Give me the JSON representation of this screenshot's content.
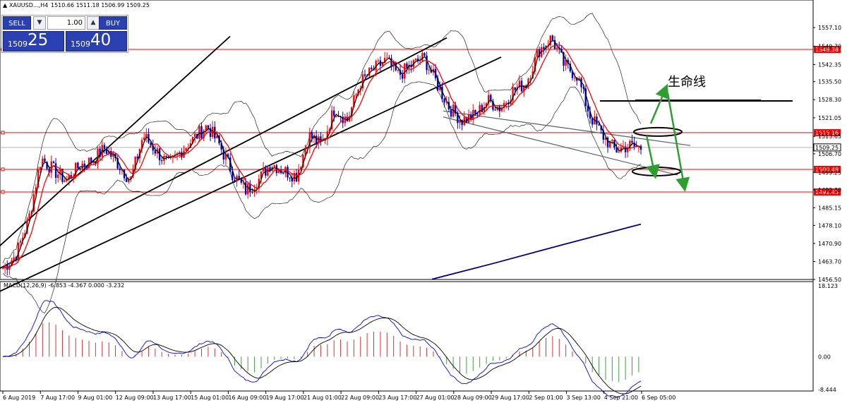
{
  "header": {
    "symbol": "XAUUSD...,H4",
    "ohlc": "1510.66 1511.18 1506.99 1509.25"
  },
  "trade_panel": {
    "sell_label": "SELL",
    "buy_label": "BUY",
    "lot": "1.00",
    "sell_small": "1509",
    "sell_big": "25",
    "buy_small": "1509",
    "buy_big": "40",
    "spin_down": "▼",
    "spin_up": "▲"
  },
  "annotation_text": "生命线",
  "colors": {
    "bull": "#ff0000",
    "bear": "#0000c8",
    "level": "#ff0000",
    "channel": "#000000",
    "bollinger": "#000000",
    "ma_fast": "#000000",
    "ma_slow": "#ff0000",
    "ma_long": "#000080",
    "arrows": "#2e9e2e",
    "macd_line": "#0000ff",
    "signal_line": "#000000"
  },
  "chart_data": [
    {
      "type": "candlestick",
      "ylim": [
        1456.5,
        1560.5
      ],
      "price_ticks": [
        "1557.10",
        "1549.70",
        "1542.35",
        "1535.50",
        "1528.30",
        "1521.05",
        "1513.65",
        "1506.70",
        "1499.25",
        "1492.30",
        "1485.15",
        "1478.10",
        "1470.90",
        "1463.70",
        "1456.50"
      ],
      "levels": [
        {
          "value": 1548.38,
          "label": "1548.38"
        },
        {
          "value": 1515.16,
          "label": "1515.16"
        },
        {
          "value": 1500.48,
          "label": "1500.48"
        },
        {
          "value": 1491.45,
          "label": "1491.45"
        }
      ],
      "current_price": {
        "value": 1509.25,
        "label": "1509.25"
      },
      "time_labels": [
        "6 Aug 2019",
        "7 Aug 17:00",
        "9 Aug 01:00",
        "12 Aug 09:00",
        "13 Aug 17:00",
        "15 Aug 01:00",
        "16 Aug 09:00",
        "19 Aug 17:00",
        "21 Aug 01:00",
        "22 Aug 09:00",
        "23 Aug 17:00",
        "27 Aug 01:00",
        "28 Aug 09:00",
        "29 Aug 17:00",
        "2 Sep 01:00",
        "3 Sep 13:00",
        "4 Sep 21:00",
        "6 Sep 05:00"
      ],
      "close_path": [
        1461,
        1466,
        1480,
        1505,
        1500,
        1496,
        1502,
        1504,
        1509,
        1503,
        1496,
        1514,
        1508,
        1502,
        1508,
        1513,
        1518,
        1510,
        1499,
        1492,
        1496,
        1503,
        1500,
        1498,
        1514,
        1510,
        1525,
        1520,
        1535,
        1540,
        1544,
        1538,
        1542,
        1545,
        1535,
        1525,
        1520,
        1522,
        1528,
        1525,
        1532,
        1535,
        1548,
        1553,
        1542,
        1538,
        1522,
        1514,
        1508,
        1510,
        1509
      ],
      "trendline_ends": [
        {
          "from": [
            0,
            1470.0
          ],
          "to": [
            326,
            1553.6
          ]
        },
        {
          "from": [
            0,
            1461.0
          ],
          "to": [
            633,
            1553.0
          ]
        },
        {
          "from": [
            0,
            1451.8
          ],
          "to": [
            710,
            1545.3
          ]
        },
        {
          "from": [
            628,
            1523.8
          ],
          "to": [
            978,
            1510.0
          ]
        },
        {
          "from": [
            628,
            1521.4
          ],
          "to": [
            960,
            1498.2
          ]
        }
      ],
      "lifeline_value": 1527.8
    },
    {
      "type": "macd",
      "label": "MACD(12,26,9) -6.853 -4.367 0.000 -3.232",
      "ylim": [
        -8.444,
        18.123
      ],
      "ticks": [
        "18.123",
        "0.00",
        "-8.444"
      ]
    }
  ]
}
